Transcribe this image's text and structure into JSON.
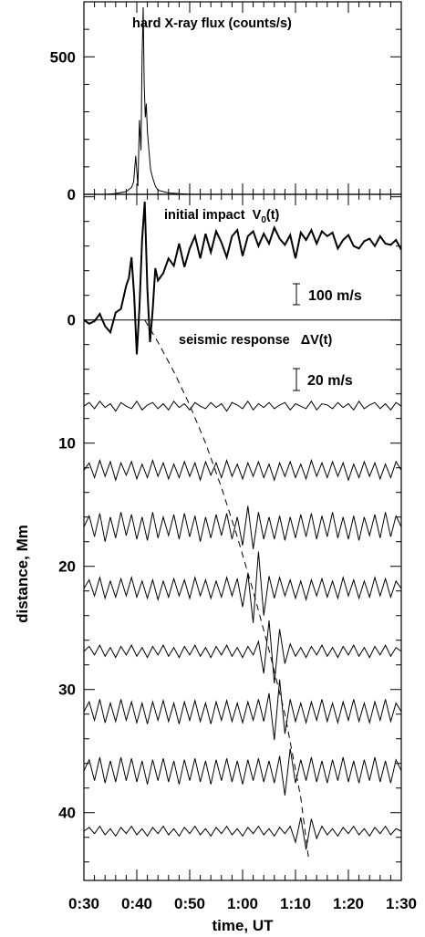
{
  "chart_data": {
    "type": "line",
    "x_unit": "minutes after 0:00 UT",
    "xlim": [
      30,
      90
    ],
    "xlabel": "time, UT",
    "x_tick_labels": [
      {
        "x": 30,
        "label": "0:30"
      },
      {
        "x": 40,
        "label": "0:40"
      },
      {
        "x": 50,
        "label": "0:50"
      },
      {
        "x": 60,
        "label": "1:00"
      },
      {
        "x": 70,
        "label": "1:10"
      },
      {
        "x": 80,
        "label": "1:20"
      },
      {
        "x": 90,
        "label": "1:30"
      }
    ],
    "top_panel": {
      "type": "line",
      "title": "hard X-ray flux (counts/s)",
      "ylim": [
        0,
        700
      ],
      "y_ticks": [
        {
          "value": 0,
          "label": "0"
        },
        {
          "value": 500,
          "label": "500"
        }
      ],
      "series": [
        {
          "x": [
            30,
            34,
            36,
            38,
            39,
            39.4,
            39.8,
            40.2,
            40.5,
            40.8,
            41.0,
            41.2,
            41.4,
            41.6,
            41.8,
            42.0,
            42.3,
            42.6,
            43.0,
            43.5,
            44,
            46,
            50,
            60,
            70,
            80,
            90
          ],
          "y": [
            0,
            0,
            3,
            10,
            25,
            45,
            140,
            30,
            270,
            160,
            500,
            680,
            400,
            280,
            330,
            230,
            160,
            90,
            60,
            30,
            15,
            5,
            0,
            0,
            0,
            0,
            0
          ]
        }
      ]
    },
    "bottom_panel": {
      "ylabel": "distance, Mm",
      "ylim": [
        -10.2,
        45.5
      ],
      "y_ticks": [
        {
          "value": 0,
          "label": "0"
        },
        {
          "value": 10,
          "label": "10"
        },
        {
          "value": 20,
          "label": "20"
        },
        {
          "value": 30,
          "label": "30"
        },
        {
          "value": 40,
          "label": "40"
        }
      ],
      "annotations": {
        "impact_label": "initial impact",
        "impact_symbol": "V",
        "impact_sub": "0",
        "impact_arg": "(t)",
        "impact_scale": "100 m/s",
        "seismic_label": "seismic response",
        "seismic_symbol": "ΔV(t)",
        "seismic_scale": "20 m/s"
      },
      "impact_trace": {
        "name": "initial impact V0(t)",
        "x": [
          30,
          31,
          32,
          33,
          34,
          35,
          36,
          37,
          38,
          38.5,
          39,
          39.5,
          40,
          40.5,
          41,
          41.5,
          42,
          42.5,
          43,
          43.5,
          44,
          45,
          46,
          47,
          48,
          49,
          50,
          51,
          52,
          53,
          54,
          55,
          56,
          57,
          58,
          59,
          60,
          61,
          62,
          63,
          64,
          65,
          66,
          67,
          68,
          69,
          70,
          71,
          72,
          73,
          74,
          75,
          76,
          77,
          78,
          79,
          80,
          81,
          82,
          83,
          84,
          85,
          86,
          87,
          88,
          89,
          90
        ],
        "y": [
          0.0,
          -0.3,
          -0.1,
          0.5,
          -0.5,
          -1.0,
          0.6,
          0.9,
          2.8,
          3.4,
          5.1,
          2.0,
          -2.8,
          1.0,
          6.5,
          9.6,
          2.5,
          -1.8,
          0.8,
          4.2,
          3.2,
          3.8,
          5.0,
          4.4,
          6.2,
          4.3,
          5.8,
          6.8,
          5.0,
          7.0,
          5.5,
          7.2,
          6.3,
          5.1,
          6.8,
          7.3,
          5.2,
          6.8,
          7.2,
          6.0,
          7.0,
          6.2,
          7.5,
          6.6,
          6.1,
          6.9,
          5.0,
          7.1,
          6.5,
          7.3,
          6.2,
          7.2,
          6.8,
          7.1,
          5.8,
          6.5,
          6.9,
          6.0,
          5.8,
          6.4,
          6.6,
          6.0,
          6.8,
          6.2,
          6.1,
          6.5,
          5.7
        ]
      },
      "seismic_traces": [
        {
          "offset": 7.0,
          "y": [
            0.0,
            0.3,
            -0.2,
            0.4,
            -0.1,
            0.2,
            -0.4,
            0.3,
            0.0,
            -0.2,
            0.4,
            -0.3,
            0.1,
            0.3,
            -0.2,
            0.2,
            -0.3,
            0.4,
            -0.1,
            0.2,
            -0.3,
            0.3,
            0.0,
            -0.2,
            0.3,
            -0.1,
            0.2,
            -0.4,
            0.3,
            0.1,
            -0.2,
            0.4,
            -0.3,
            0.2,
            -0.1,
            0.3,
            -0.2,
            0.1,
            0.3,
            -0.3,
            0.2,
            0.0,
            -0.2,
            0.4,
            -0.3,
            0.2,
            0.1,
            -0.2,
            0.3,
            -0.1,
            0.2,
            -0.3,
            0.4,
            -0.2,
            0.1,
            0.3,
            -0.2,
            0.2,
            -0.3,
            0.3,
            0.0
          ]
        },
        {
          "offset": 12.2,
          "y": [
            0.0,
            0.6,
            -0.6,
            0.8,
            -0.5,
            0.7,
            -0.8,
            0.6,
            -0.4,
            0.7,
            -0.7,
            0.5,
            -0.6,
            0.8,
            -0.5,
            0.6,
            -0.7,
            0.5,
            -0.6,
            0.7,
            -0.5,
            0.6,
            -0.8,
            0.7,
            -0.4,
            0.6,
            -0.6,
            0.8,
            -0.5,
            0.5,
            -0.7,
            0.6,
            -0.5,
            0.7,
            -0.6,
            0.5,
            -0.8,
            0.6,
            -0.5,
            0.7,
            -0.6,
            0.5,
            -0.7,
            0.8,
            -0.5,
            0.6,
            -0.6,
            0.7,
            -0.5,
            0.6,
            -0.8,
            0.5,
            -0.6,
            0.7,
            -0.5,
            0.6,
            -0.7,
            0.5,
            -0.6,
            0.7,
            0.0
          ]
        },
        {
          "offset": 16.8,
          "y": [
            0.0,
            0.9,
            -0.8,
            1.1,
            -1.2,
            0.8,
            -0.9,
            1.2,
            -0.7,
            1.0,
            -1.0,
            0.8,
            -1.1,
            1.2,
            -0.9,
            0.8,
            -0.7,
            1.0,
            -1.0,
            1.1,
            -0.8,
            0.9,
            -1.2,
            0.8,
            -0.9,
            1.0,
            -0.7,
            1.1,
            -1.0,
            0.8,
            -1.5,
            1.7,
            -1.8,
            1.2,
            -1.0,
            0.8,
            -1.0,
            0.9,
            -1.1,
            0.8,
            -0.9,
            1.0,
            -0.8,
            1.1,
            -1.0,
            0.9,
            -0.8,
            1.2,
            -0.9,
            0.8,
            -1.0,
            0.9,
            -1.1,
            0.8,
            -0.7,
            1.0,
            -0.9,
            1.2,
            -0.8,
            0.9,
            0.0
          ]
        },
        {
          "offset": 21.8,
          "y": [
            0.0,
            0.7,
            -0.6,
            0.9,
            -0.8,
            0.6,
            -0.7,
            0.8,
            -0.6,
            0.9,
            -0.7,
            0.6,
            -0.8,
            0.7,
            -0.9,
            0.6,
            -0.7,
            0.8,
            -0.6,
            0.7,
            -0.8,
            0.9,
            -0.6,
            0.7,
            -0.8,
            0.6,
            -0.7,
            0.9,
            -0.6,
            0.8,
            -1.5,
            1.2,
            -2.8,
            3.0,
            -2.2,
            1.0,
            -0.8,
            0.9,
            -0.6,
            0.7,
            -0.8,
            0.6,
            -0.9,
            0.7,
            -0.6,
            0.8,
            -0.7,
            0.6,
            -0.8,
            0.9,
            -0.6,
            0.7,
            -0.8,
            0.6,
            -0.7,
            0.9,
            -0.6,
            0.8,
            -0.7,
            0.6,
            0.0
          ]
        },
        {
          "offset": 26.9,
          "y": [
            0.0,
            0.4,
            -0.3,
            0.5,
            -0.4,
            0.3,
            -0.5,
            0.4,
            -0.3,
            0.5,
            -0.4,
            0.3,
            -0.5,
            0.4,
            -0.3,
            0.5,
            -0.4,
            0.3,
            -0.5,
            0.4,
            -0.3,
            0.5,
            -0.4,
            0.3,
            -0.5,
            0.4,
            -0.3,
            0.5,
            -0.4,
            0.3,
            -0.5,
            0.4,
            -0.3,
            0.8,
            -1.8,
            2.5,
            -2.6,
            1.8,
            -1.0,
            0.6,
            -0.4,
            0.3,
            -0.5,
            0.4,
            -0.3,
            0.5,
            -0.4,
            0.3,
            -0.5,
            0.4,
            -0.3,
            0.5,
            -0.4,
            0.3,
            -0.5,
            0.4,
            -0.3,
            0.5,
            -0.4,
            0.3,
            0.0
          ]
        },
        {
          "offset": 31.8,
          "y": [
            0.0,
            0.8,
            -0.7,
            1.0,
            -0.9,
            0.7,
            -0.8,
            1.0,
            -0.7,
            0.8,
            -0.9,
            0.7,
            -1.0,
            0.8,
            -0.7,
            0.9,
            -0.8,
            0.7,
            -1.0,
            0.8,
            -0.7,
            0.9,
            -0.8,
            0.7,
            -1.0,
            0.8,
            -0.7,
            0.9,
            -0.8,
            0.7,
            -0.9,
            0.8,
            -0.7,
            1.0,
            -0.8,
            1.5,
            -2.3,
            2.6,
            -1.8,
            1.0,
            -0.8,
            0.7,
            -0.9,
            0.8,
            -0.7,
            1.0,
            -0.8,
            0.7,
            -0.9,
            0.8,
            -0.7,
            1.0,
            -0.8,
            0.7,
            -0.9,
            0.8,
            -0.7,
            1.0,
            -0.8,
            0.7,
            0.0
          ]
        },
        {
          "offset": 36.6,
          "y": [
            0.0,
            0.9,
            -0.8,
            1.1,
            -1.0,
            0.8,
            -0.9,
            1.1,
            -0.8,
            1.0,
            -0.9,
            0.8,
            -1.1,
            0.9,
            -0.8,
            1.0,
            -0.9,
            0.8,
            -1.1,
            0.9,
            -0.8,
            1.0,
            -0.9,
            0.8,
            -1.1,
            0.9,
            -0.8,
            1.0,
            -0.9,
            0.8,
            -1.1,
            0.9,
            -0.8,
            1.0,
            -0.9,
            0.8,
            -1.0,
            1.2,
            -2.0,
            1.8,
            -1.0,
            0.9,
            -0.8,
            1.1,
            -0.9,
            0.8,
            -1.0,
            0.9,
            -0.8,
            1.1,
            -0.9,
            0.8,
            -1.0,
            0.9,
            -0.8,
            1.1,
            -0.9,
            0.8,
            -1.0,
            0.9,
            0.0
          ]
        },
        {
          "offset": 41.5,
          "y": [
            0.0,
            0.3,
            -0.2,
            0.4,
            -0.3,
            0.2,
            -0.4,
            0.3,
            -0.2,
            0.4,
            -0.3,
            0.2,
            -0.4,
            0.3,
            -0.2,
            0.4,
            -0.3,
            0.2,
            -0.4,
            0.3,
            -0.2,
            0.4,
            -0.3,
            0.2,
            -0.4,
            0.3,
            -0.2,
            0.4,
            -0.3,
            0.2,
            -0.4,
            0.3,
            -0.2,
            0.4,
            -0.3,
            0.2,
            -0.4,
            0.3,
            -0.2,
            0.4,
            -0.9,
            1.1,
            -1.5,
            1.0,
            -0.6,
            0.4,
            -0.3,
            0.2,
            -0.4,
            0.3,
            -0.2,
            0.4,
            -0.3,
            0.2,
            -0.4,
            0.3,
            -0.2,
            0.4,
            -0.3,
            0.2,
            0.0
          ]
        }
      ],
      "wavefront": {
        "x": [
          41.5,
          44,
          47,
          50,
          53,
          56,
          59,
          62,
          65,
          68,
          71,
          72.5
        ],
        "y": [
          0.0,
          1.8,
          4.2,
          6.9,
          10.0,
          13.6,
          17.6,
          22.0,
          26.8,
          32.0,
          38.8,
          43.8
        ]
      }
    }
  }
}
